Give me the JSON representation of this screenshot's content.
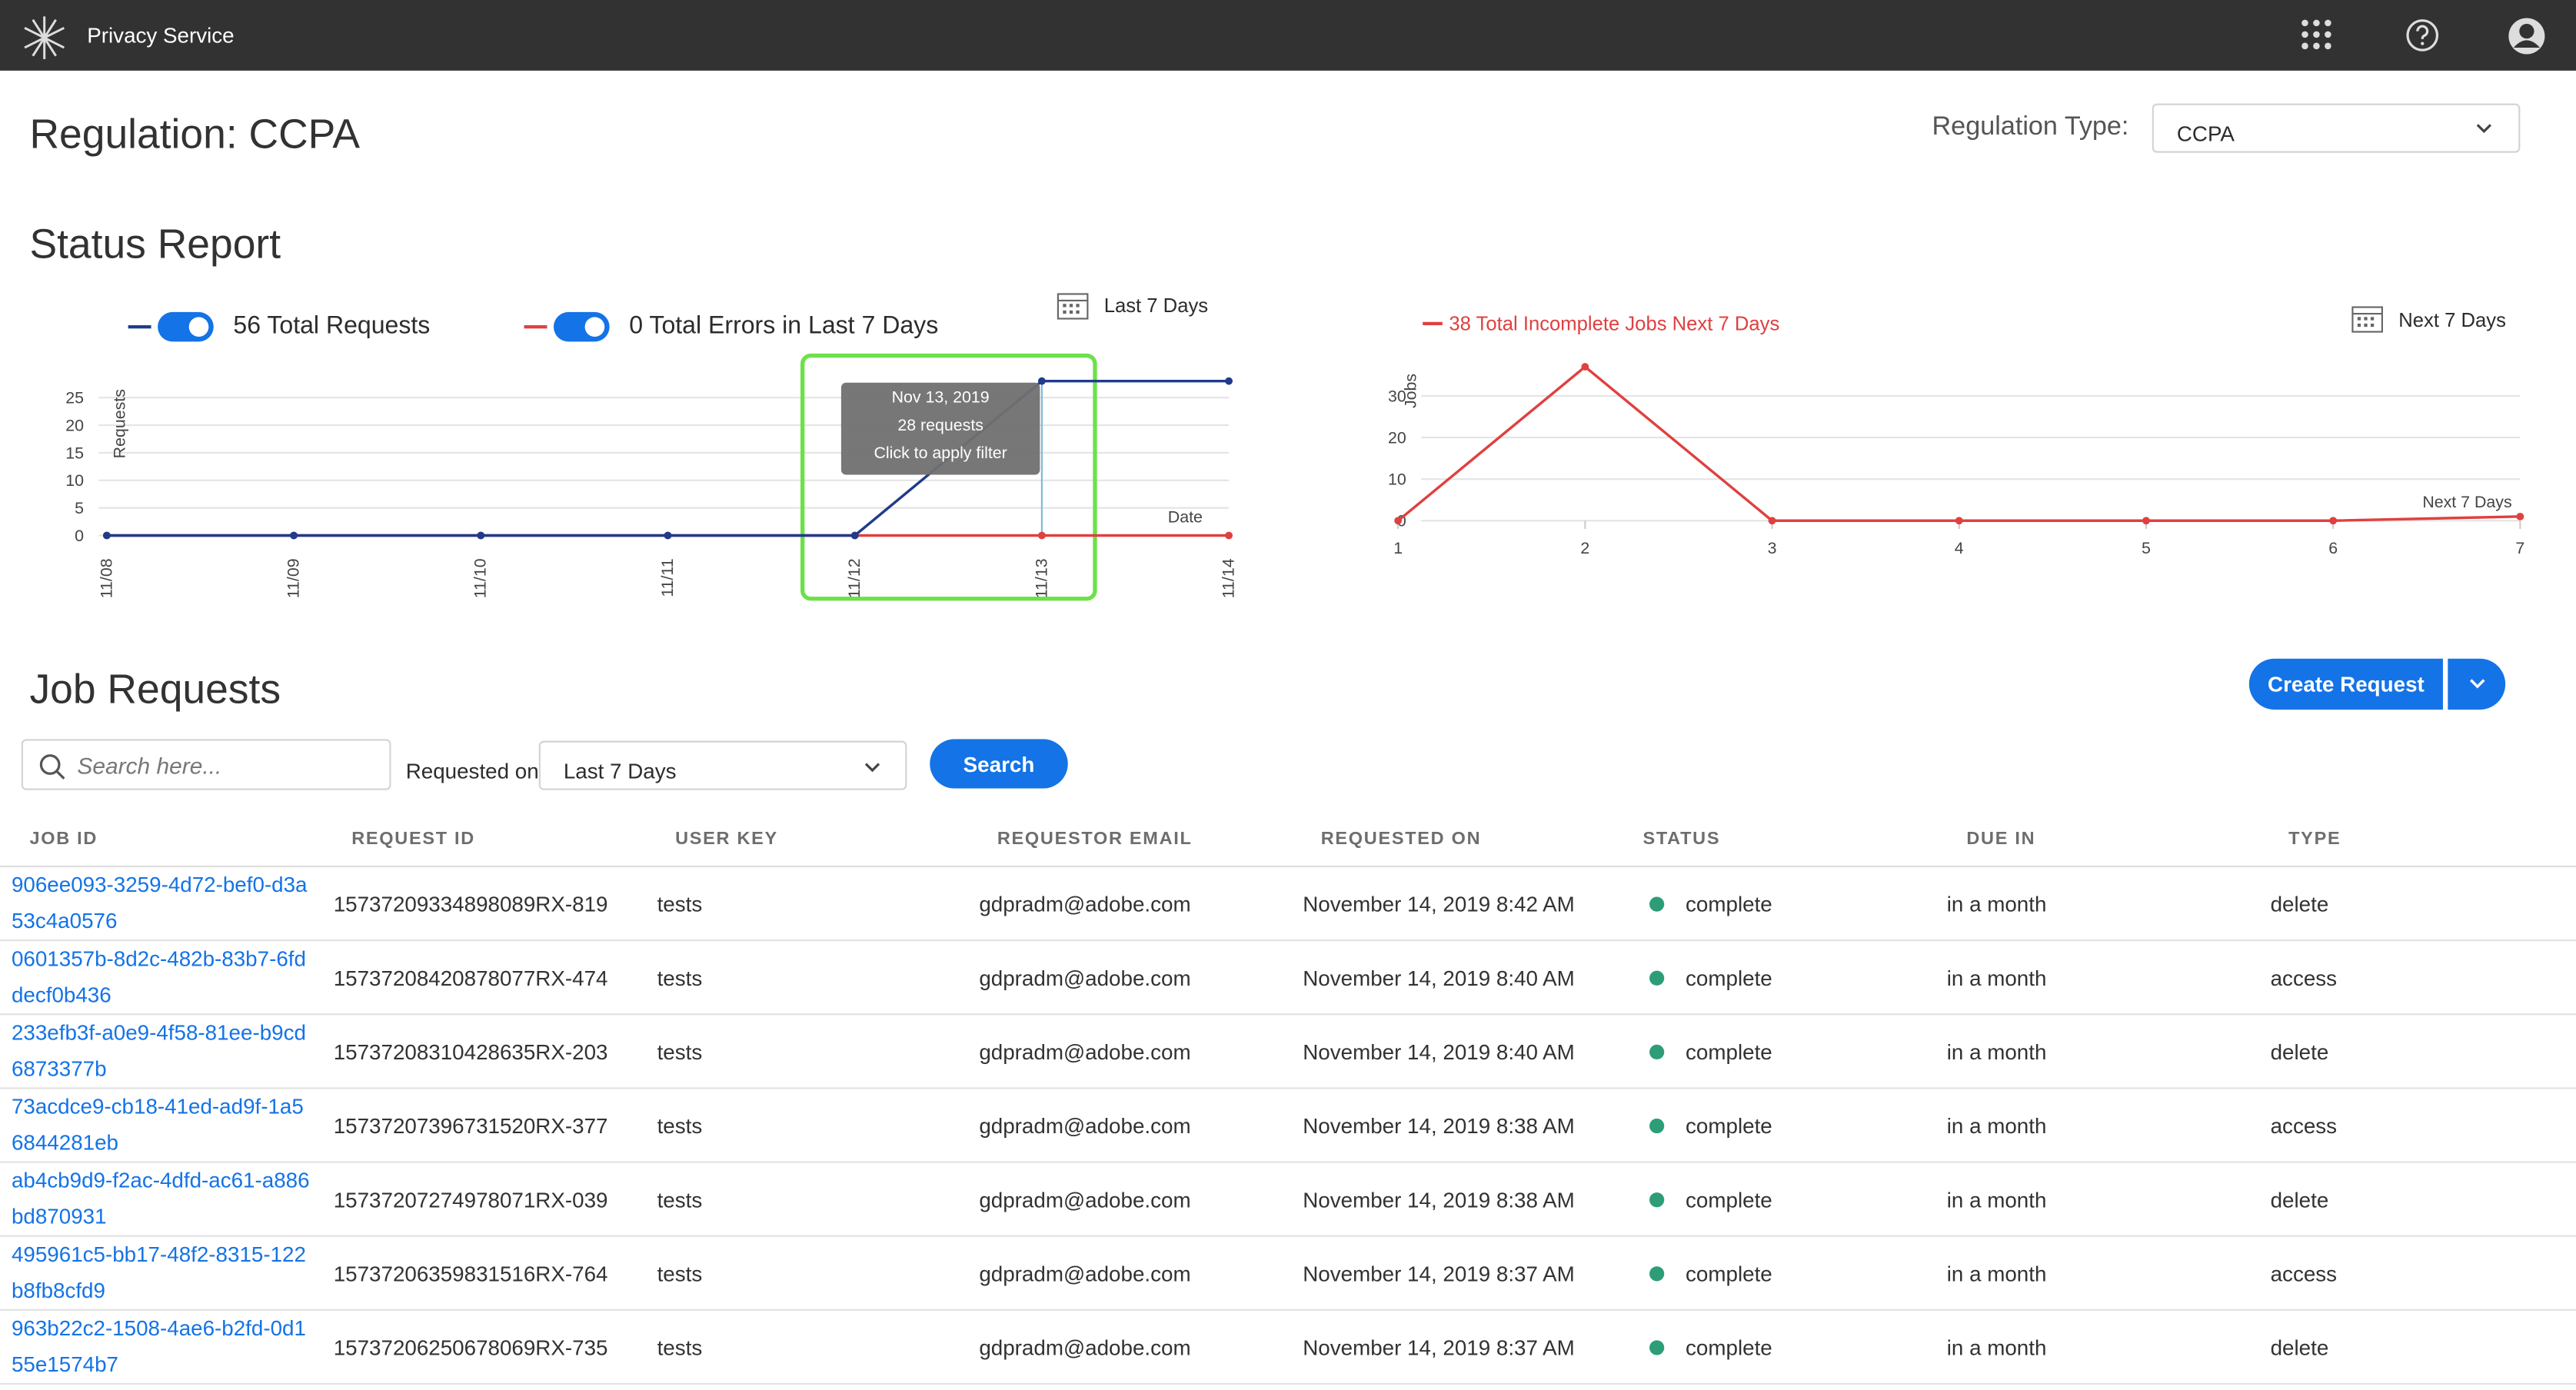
{
  "header": {
    "app_name": "Privacy Service"
  },
  "page": {
    "title": "Regulation: CCPA",
    "regulation_type_label": "Regulation Type:",
    "regulation_type_value": "CCPA"
  },
  "status_report": {
    "title": "Status Report",
    "left_range": "Last 7 Days",
    "right_range": "Next 7 Days"
  },
  "chart_data": [
    {
      "type": "line",
      "categories": [
        "11/08",
        "11/09",
        "11/10",
        "11/11",
        "11/12",
        "11/13",
        "11/14"
      ],
      "series": [
        {
          "name": "56 Total Requests",
          "color": "#1f3b8c",
          "values": [
            0,
            0,
            0,
            0,
            0,
            28,
            28
          ]
        },
        {
          "name": "0 Total Errors in Last 7 Days",
          "color": "#e04040",
          "values": [
            0,
            0,
            0,
            0,
            0,
            0,
            0
          ]
        }
      ],
      "ylim": [
        0,
        28
      ],
      "yticks": [
        0,
        5,
        10,
        15,
        20,
        25
      ],
      "grid": true,
      "y_label": "Requests",
      "x_label": "Date",
      "tooltip": {
        "date": "Nov 13, 2019",
        "count": "28 requests",
        "hint": "Click to apply filter"
      }
    },
    {
      "type": "line",
      "x": [
        1,
        2,
        3,
        4,
        5,
        6,
        7
      ],
      "xlim": [
        1,
        7
      ],
      "xticks": [
        1,
        2,
        3,
        4,
        5,
        6,
        7
      ],
      "series": [
        {
          "name": "38 Total Incomplete Jobs Next 7 Days",
          "color": "#e04040",
          "values": [
            0,
            37,
            0,
            0,
            0,
            0,
            1
          ]
        }
      ],
      "ylim": [
        0,
        37
      ],
      "yticks": [
        0,
        10,
        20,
        30
      ],
      "grid": true,
      "y_label": "Jobs",
      "x_label": "Next 7 Days"
    }
  ],
  "job_requests": {
    "title": "Job Requests",
    "search_placeholder": "Search here...",
    "requested_on_label": "Requested on",
    "requested_on_value": "Last 7 Days",
    "search_button": "Search",
    "create_button": "Create Request",
    "table": {
      "columns": [
        "JOB ID",
        "REQUEST ID",
        "USER KEY",
        "REQUESTOR EMAIL",
        "REQUESTED ON",
        "STATUS",
        "DUE IN",
        "TYPE"
      ],
      "rows": [
        [
          "906ee093-3259-4d72-bef0-d3a53c4a0576",
          "15737209334898089RX-819",
          "tests",
          "gdpradm@adobe.com",
          "November 14, 2019 8:42 AM",
          "complete",
          "in a month",
          "delete"
        ],
        [
          "0601357b-8d2c-482b-83b7-6fddecf0b436",
          "15737208420878077RX-474",
          "tests",
          "gdpradm@adobe.com",
          "November 14, 2019 8:40 AM",
          "complete",
          "in a month",
          "access"
        ],
        [
          "233efb3f-a0e9-4f58-81ee-b9cd6873377b",
          "15737208310428635RX-203",
          "tests",
          "gdpradm@adobe.com",
          "November 14, 2019 8:40 AM",
          "complete",
          "in a month",
          "delete"
        ],
        [
          "73acdce9-cb18-41ed-ad9f-1a56844281eb",
          "15737207396731520RX-377",
          "tests",
          "gdpradm@adobe.com",
          "November 14, 2019 8:38 AM",
          "complete",
          "in a month",
          "access"
        ],
        [
          "ab4cb9d9-f2ac-4dfd-ac61-a886bd870931",
          "15737207274978071RX-039",
          "tests",
          "gdpradm@adobe.com",
          "November 14, 2019 8:38 AM",
          "complete",
          "in a month",
          "delete"
        ],
        [
          "495961c5-bb17-48f2-8315-122b8fb8cfd9",
          "15737206359831516RX-764",
          "tests",
          "gdpradm@adobe.com",
          "November 14, 2019 8:37 AM",
          "complete",
          "in a month",
          "access"
        ],
        [
          "963b22c2-1508-4ae6-b2fd-0d155e1574b7",
          "15737206250678069RX-735",
          "tests",
          "gdpradm@adobe.com",
          "November 14, 2019 8:37 AM",
          "complete",
          "in a month",
          "delete"
        ]
      ]
    }
  }
}
